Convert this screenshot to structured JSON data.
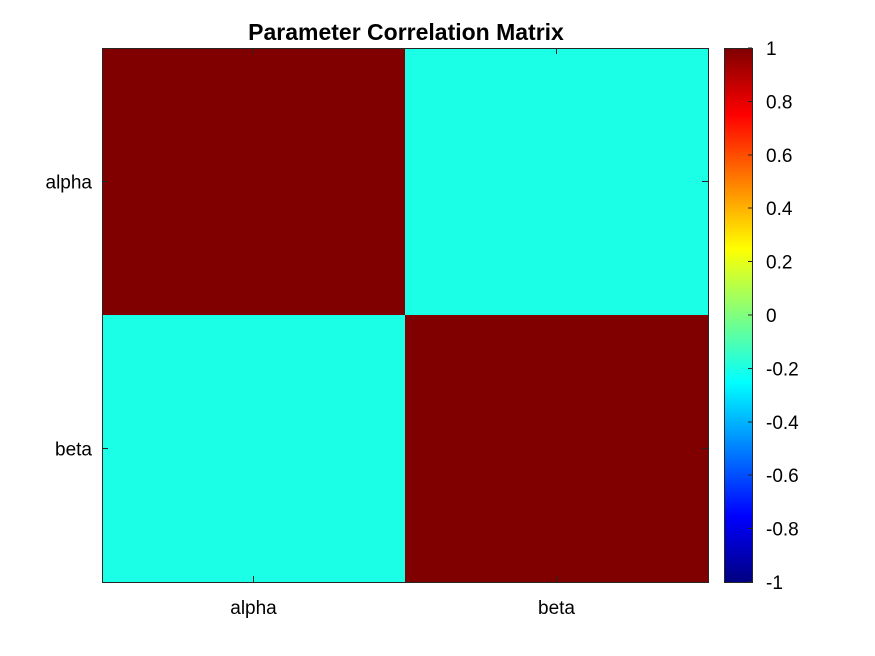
{
  "chart_data": {
    "type": "heatmap",
    "title": "Parameter Correlation Matrix",
    "x_categories": [
      "alpha",
      "beta"
    ],
    "y_categories": [
      "alpha",
      "beta"
    ],
    "values": [
      [
        1,
        -0.2
      ],
      [
        -0.2,
        1
      ]
    ],
    "colorbar": {
      "colormap": "jet",
      "range": [
        -1,
        1
      ],
      "ticks": [
        "1",
        "0.8",
        "0.6",
        "0.4",
        "0.2",
        "0",
        "-0.2",
        "-0.4",
        "-0.6",
        "-0.8",
        "-1"
      ],
      "tick_values": [
        1,
        0.8,
        0.6,
        0.4,
        0.2,
        0,
        -0.2,
        -0.4,
        -0.6,
        -0.8,
        -1
      ],
      "placement": "right"
    },
    "grid": false
  }
}
